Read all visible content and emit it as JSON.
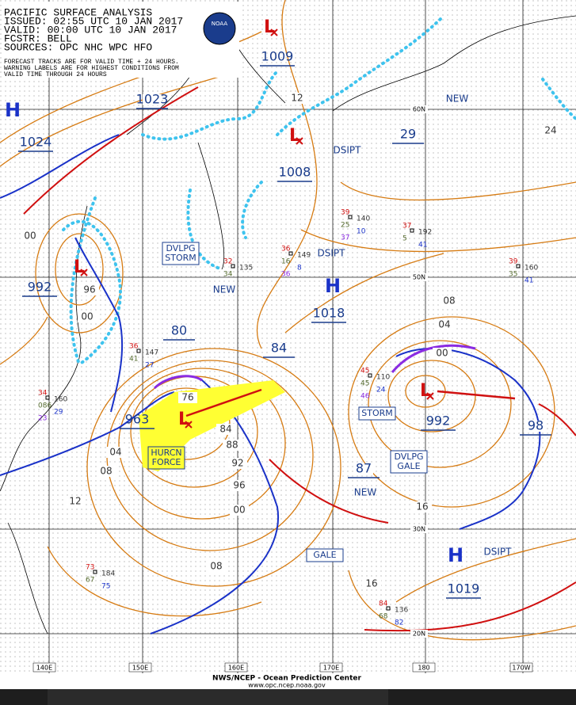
{
  "header": {
    "title": "PACIFIC SURFACE ANALYSIS",
    "issued": "ISSUED: 02:55 UTC 10 JAN 2017",
    "valid": "VALID:  00:00 UTC 10 JAN 2017",
    "forecaster": "FCSTR: BELL",
    "sources": "SOURCES: OPC NHC WPC HFO",
    "note": [
      "FORECAST TRACKS ARE FOR VALID TIME + 24 HOURS.",
      "WARNING LABELS ARE FOR HIGHEST CONDITIONS FROM",
      "VALID TIME THROUGH 24 HOURS"
    ],
    "logo": "NOAA"
  },
  "centers": [
    {
      "symbol": "H",
      "pressure": "1024"
    },
    {
      "symbol": "L",
      "pressure": "1009"
    },
    {
      "symbol": "L",
      "pressure": "1008"
    },
    {
      "symbol": "H",
      "pressure": "1018"
    },
    {
      "symbol": "L",
      "pressure": "963"
    },
    {
      "symbol": "L",
      "pressure": "992"
    },
    {
      "symbol": "H",
      "pressure": "1019"
    },
    {
      "symbol": "L",
      "pressure": "992"
    }
  ],
  "isobar_labels": [
    "1023",
    "29",
    "24",
    "12",
    "00",
    "96",
    "00",
    "80",
    "84",
    "76",
    "84",
    "88",
    "92",
    "96",
    "00",
    "04",
    "08",
    "12",
    "08",
    "87",
    "98",
    "08",
    "04",
    "00",
    "16",
    "16"
  ],
  "warnings": [
    {
      "lines": [
        "DVLPG",
        "STORM"
      ]
    },
    {
      "lines": [
        "HURCN",
        "FORCE"
      ]
    },
    {
      "lines": [
        "STORM"
      ]
    },
    {
      "lines": [
        "DVLPG",
        "GALE"
      ]
    },
    {
      "lines": [
        "GALE"
      ]
    }
  ],
  "status_labels": [
    "NEW",
    "NEW",
    "NEW",
    "DSIPT",
    "DSIPT",
    "DSIPT"
  ],
  "ship_obs": [
    [
      "39",
      "140",
      "25",
      "10",
      "37"
    ],
    [
      "37",
      "192",
      "5",
      "41"
    ],
    [
      "36",
      "149",
      "16",
      "8",
      "36"
    ],
    [
      "32",
      "135",
      "34"
    ],
    [
      "39",
      "160",
      "35",
      "41"
    ],
    [
      "45",
      "110",
      "45",
      "24",
      "46"
    ],
    [
      "34",
      "160",
      "086",
      "29",
      "23"
    ],
    [
      "36",
      "147",
      "41",
      "27"
    ],
    [
      "73",
      "184",
      "67",
      "75"
    ],
    [
      "84",
      "136",
      "68",
      "82"
    ]
  ],
  "grid": {
    "lat": [
      "60N",
      "50N",
      "30N",
      "20N"
    ],
    "lon": [
      "140E",
      "150E",
      "160E",
      "170E",
      "180",
      "170W"
    ]
  },
  "footer": {
    "agency": "NWS/NCEP - Ocean Prediction Center",
    "url": "www.opc.ncep.noaa.gov"
  }
}
